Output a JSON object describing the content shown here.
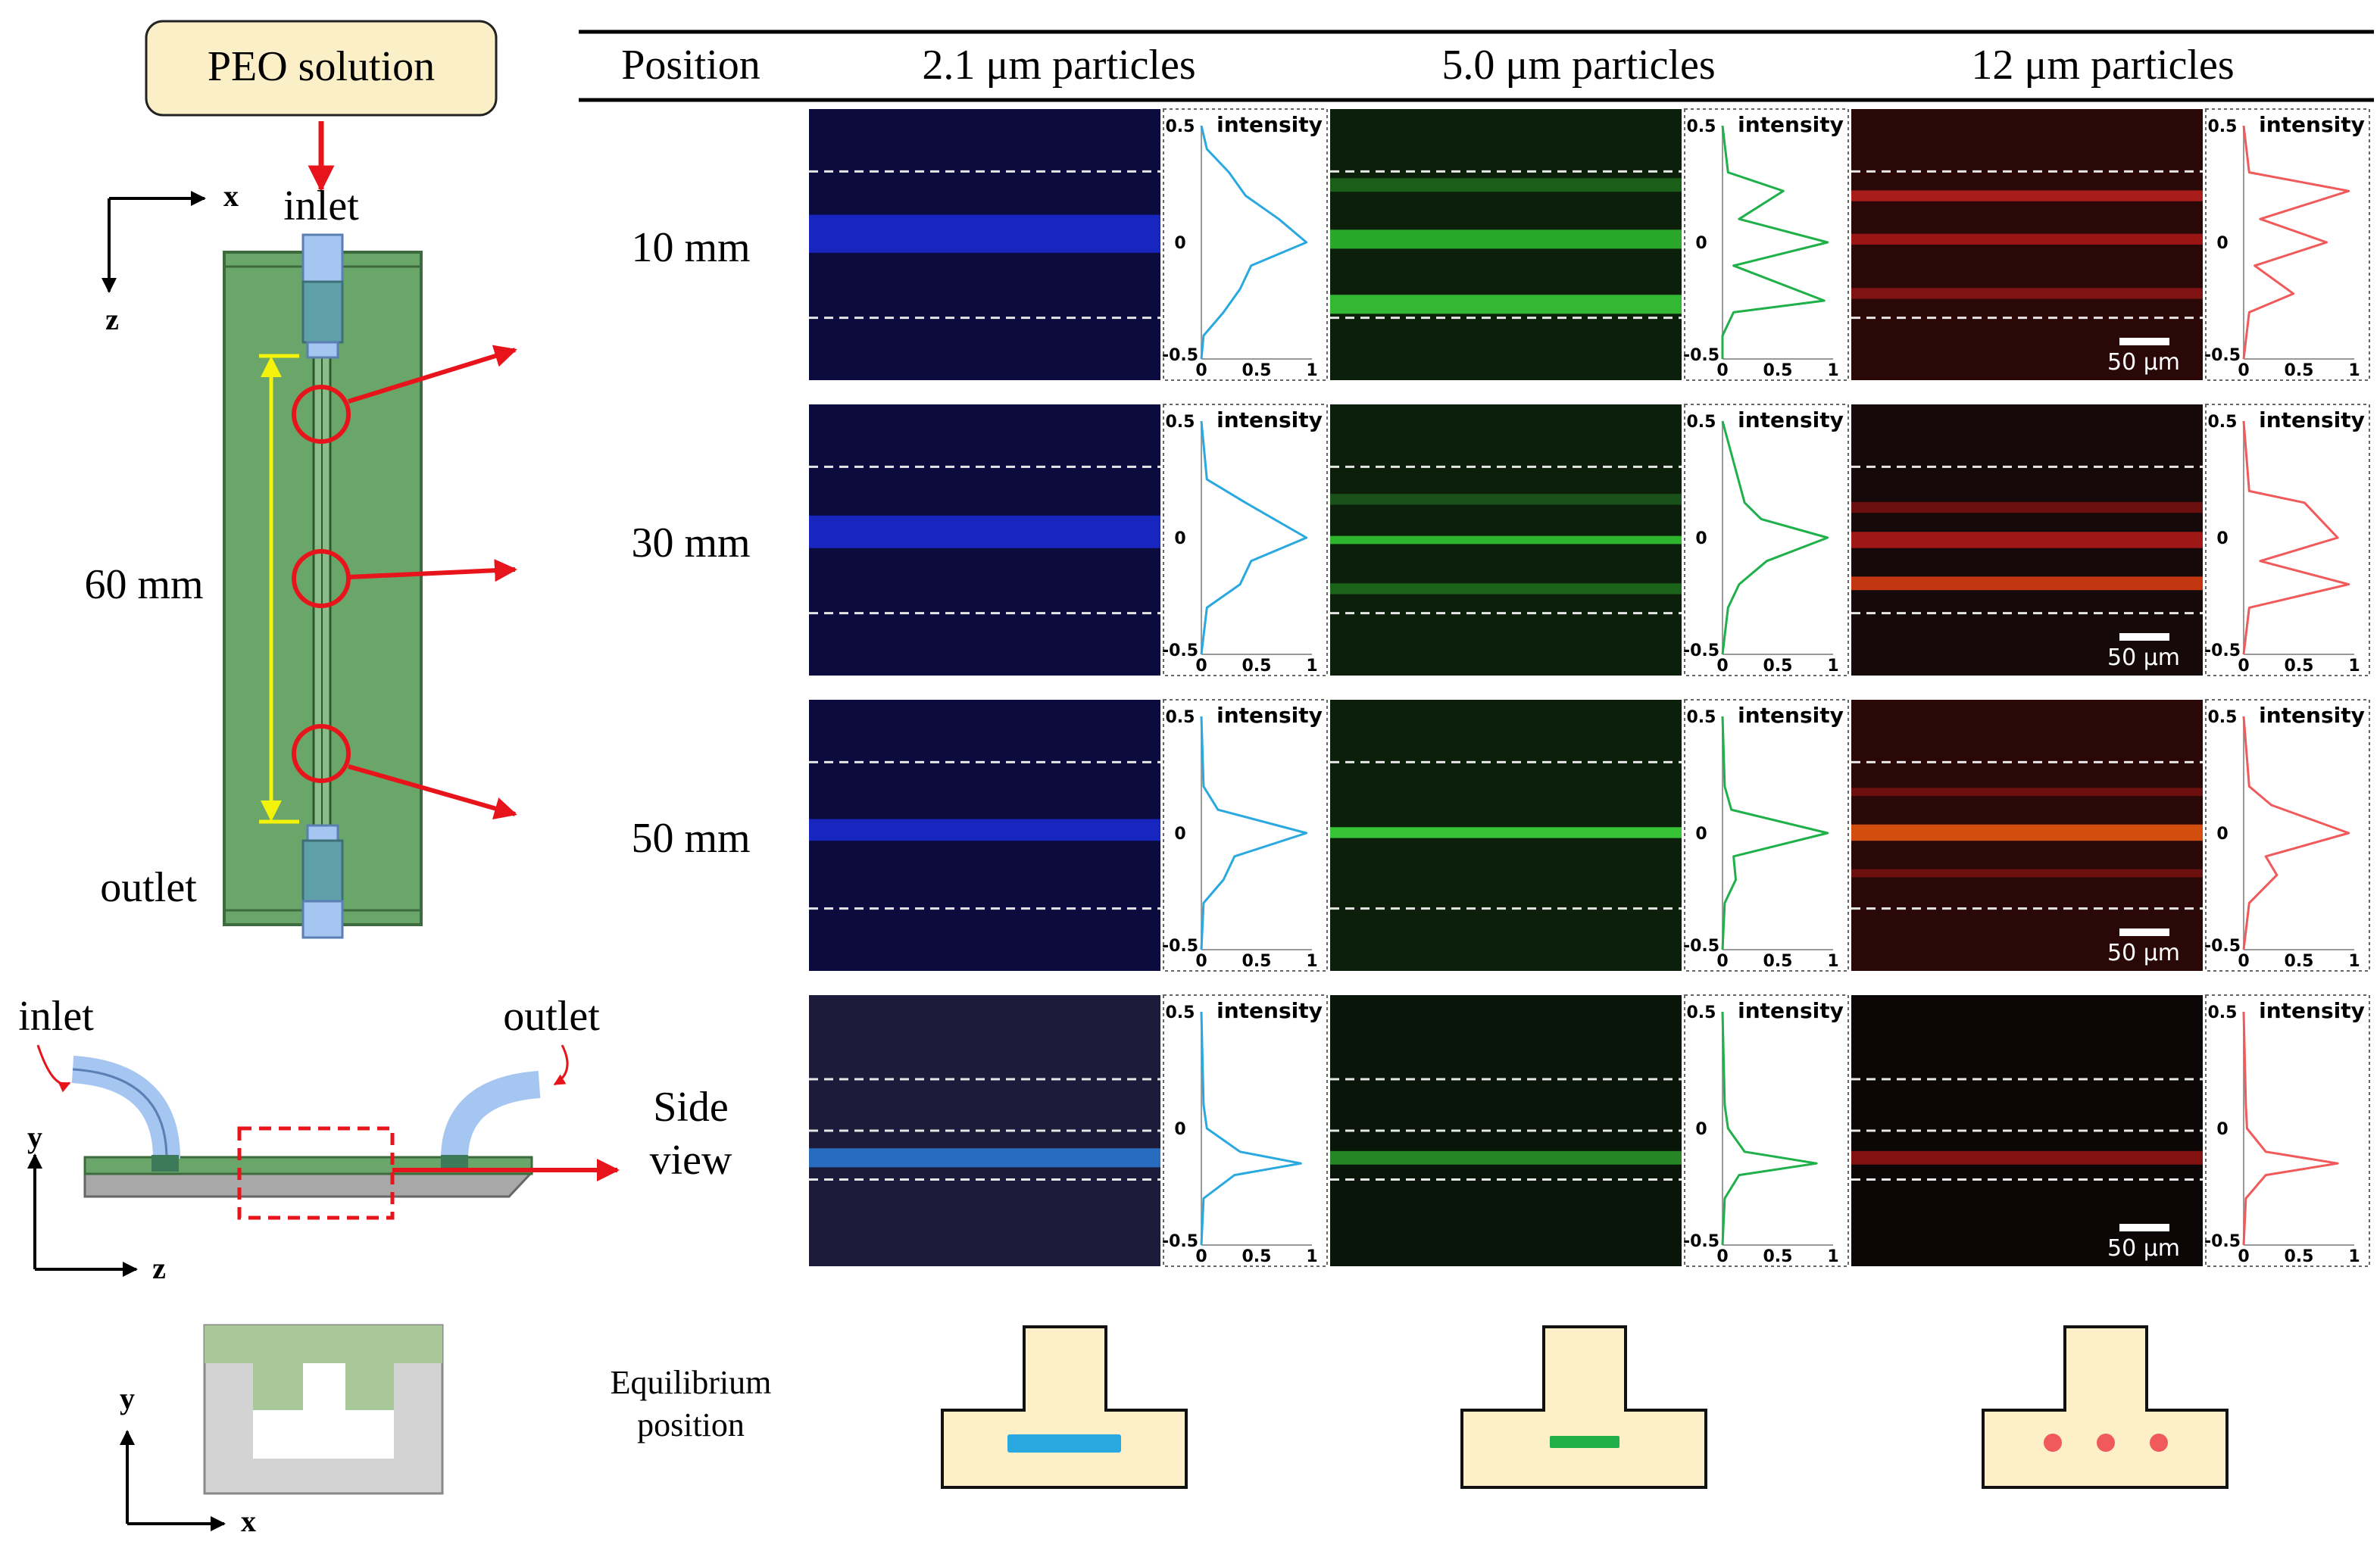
{
  "left_panel": {
    "peo_label": "PEO solution",
    "axis_x": "x",
    "axis_z": "z",
    "axis_y": "y",
    "inlet": "inlet",
    "outlet": "outlet",
    "length_label": "60 mm",
    "side_inlet": "inlet",
    "side_outlet": "outlet",
    "side_view": [
      "Side",
      "view"
    ]
  },
  "table": {
    "header_position": "Position",
    "headers": [
      "2.1 μm particles",
      "5.0 μm particles",
      "12 μm particles"
    ],
    "rows": [
      "10 mm",
      "30 mm",
      "50 mm"
    ],
    "equilibrium": [
      "Equilibrium",
      "position"
    ],
    "plot_labels": {
      "title": "intensity",
      "y_top": "0.5",
      "y_mid": "0",
      "y_bot": "-0.5",
      "x_ticks": [
        "0",
        "0.5",
        "1"
      ]
    },
    "scale_bar": "50 μm"
  },
  "colors": {
    "blue_curve": "#29a9e0",
    "green_curve": "#1fb04a",
    "red_curve": "#f05a5a",
    "chip_green": "#6aa56a",
    "peo_box": "#fbefc8",
    "cross_fill": "#fdf0c8",
    "circle_red": "#e8141b"
  },
  "chart_data": [
    {
      "type": "line",
      "title": "intensity",
      "series": "2.1 μm @ 10 mm",
      "xlim": [
        0,
        1
      ],
      "ylim": [
        -0.5,
        0.5
      ],
      "y": [
        0.5,
        0.4,
        0.3,
        0.2,
        0.1,
        0.0,
        -0.1,
        -0.2,
        -0.3,
        -0.4,
        -0.5
      ],
      "x": [
        0.0,
        0.05,
        0.25,
        0.4,
        0.7,
        0.95,
        0.45,
        0.35,
        0.2,
        0.02,
        0.0
      ]
    },
    {
      "type": "line",
      "title": "intensity",
      "series": "5.0 μm @ 10 mm",
      "xlim": [
        0,
        1
      ],
      "ylim": [
        -0.5,
        0.5
      ],
      "y": [
        0.5,
        0.3,
        0.22,
        0.1,
        0.0,
        -0.1,
        -0.25,
        -0.3,
        -0.4,
        -0.5
      ],
      "x": [
        0.0,
        0.05,
        0.55,
        0.15,
        0.95,
        0.1,
        0.92,
        0.1,
        0.0,
        0.0
      ]
    },
    {
      "type": "line",
      "title": "intensity",
      "series": "12 μm @ 10 mm",
      "xlim": [
        0,
        1
      ],
      "ylim": [
        -0.5,
        0.5
      ],
      "y": [
        0.5,
        0.3,
        0.22,
        0.1,
        0.0,
        -0.1,
        -0.22,
        -0.3,
        -0.5
      ],
      "x": [
        0.0,
        0.05,
        0.95,
        0.15,
        0.75,
        0.1,
        0.45,
        0.05,
        0.0
      ]
    },
    {
      "type": "line",
      "title": "intensity",
      "series": "2.1 μm @ 30 mm",
      "xlim": [
        0,
        1
      ],
      "ylim": [
        -0.5,
        0.5
      ],
      "y": [
        0.5,
        0.25,
        0.15,
        0.0,
        -0.1,
        -0.2,
        -0.3,
        -0.5
      ],
      "x": [
        0.0,
        0.05,
        0.4,
        0.95,
        0.45,
        0.35,
        0.05,
        0.0
      ]
    },
    {
      "type": "line",
      "title": "intensity",
      "series": "5.0 μm @ 30 mm",
      "xlim": [
        0,
        1
      ],
      "ylim": [
        -0.5,
        0.5
      ],
      "y": [
        0.5,
        0.15,
        0.08,
        0.0,
        -0.1,
        -0.2,
        -0.3,
        -0.5
      ],
      "x": [
        0.0,
        0.2,
        0.35,
        0.95,
        0.4,
        0.15,
        0.05,
        0.0
      ]
    },
    {
      "type": "line",
      "title": "intensity",
      "series": "12 μm @ 30 mm",
      "xlim": [
        0,
        1
      ],
      "ylim": [
        -0.5,
        0.5
      ],
      "y": [
        0.5,
        0.2,
        0.15,
        0.0,
        -0.1,
        -0.2,
        -0.3,
        -0.5
      ],
      "x": [
        0.0,
        0.05,
        0.55,
        0.85,
        0.15,
        0.95,
        0.05,
        0.0
      ]
    },
    {
      "type": "line",
      "title": "intensity",
      "series": "2.1 μm @ 50 mm",
      "xlim": [
        0,
        1
      ],
      "ylim": [
        -0.5,
        0.5
      ],
      "y": [
        0.5,
        0.2,
        0.1,
        0.0,
        -0.1,
        -0.2,
        -0.3,
        -0.5
      ],
      "x": [
        0.0,
        0.02,
        0.15,
        0.95,
        0.3,
        0.2,
        0.02,
        0.0
      ]
    },
    {
      "type": "line",
      "title": "intensity",
      "series": "5.0 μm @ 50 mm",
      "xlim": [
        0,
        1
      ],
      "ylim": [
        -0.5,
        0.5
      ],
      "y": [
        0.5,
        0.2,
        0.1,
        0.0,
        -0.1,
        -0.2,
        -0.3,
        -0.5
      ],
      "x": [
        0.0,
        0.02,
        0.08,
        0.95,
        0.1,
        0.12,
        0.02,
        0.0
      ]
    },
    {
      "type": "line",
      "title": "intensity",
      "series": "12 μm @ 50 mm",
      "xlim": [
        0,
        1
      ],
      "ylim": [
        -0.5,
        0.5
      ],
      "y": [
        0.5,
        0.2,
        0.12,
        0.0,
        -0.1,
        -0.18,
        -0.3,
        -0.5
      ],
      "x": [
        0.0,
        0.05,
        0.25,
        0.95,
        0.2,
        0.3,
        0.05,
        0.0
      ]
    },
    {
      "type": "line",
      "title": "intensity",
      "series": "2.1 μm side view",
      "xlim": [
        0,
        1
      ],
      "ylim": [
        -0.5,
        0.5
      ],
      "y": [
        0.5,
        0.1,
        0.0,
        -0.1,
        -0.15,
        -0.2,
        -0.3,
        -0.5
      ],
      "x": [
        0.0,
        0.02,
        0.05,
        0.35,
        0.9,
        0.3,
        0.02,
        0.0
      ]
    },
    {
      "type": "line",
      "title": "intensity",
      "series": "5.0 μm side view",
      "xlim": [
        0,
        1
      ],
      "ylim": [
        -0.5,
        0.5
      ],
      "y": [
        0.5,
        0.1,
        0.0,
        -0.1,
        -0.15,
        -0.2,
        -0.3,
        -0.5
      ],
      "x": [
        0.0,
        0.02,
        0.05,
        0.2,
        0.85,
        0.15,
        0.02,
        0.0
      ]
    },
    {
      "type": "line",
      "title": "intensity",
      "series": "12 μm side view",
      "xlim": [
        0,
        1
      ],
      "ylim": [
        -0.5,
        0.5
      ],
      "y": [
        0.5,
        0.1,
        0.0,
        -0.1,
        -0.15,
        -0.2,
        -0.3,
        -0.5
      ],
      "x": [
        0.0,
        0.02,
        0.03,
        0.2,
        0.85,
        0.2,
        0.02,
        0.0
      ]
    }
  ]
}
